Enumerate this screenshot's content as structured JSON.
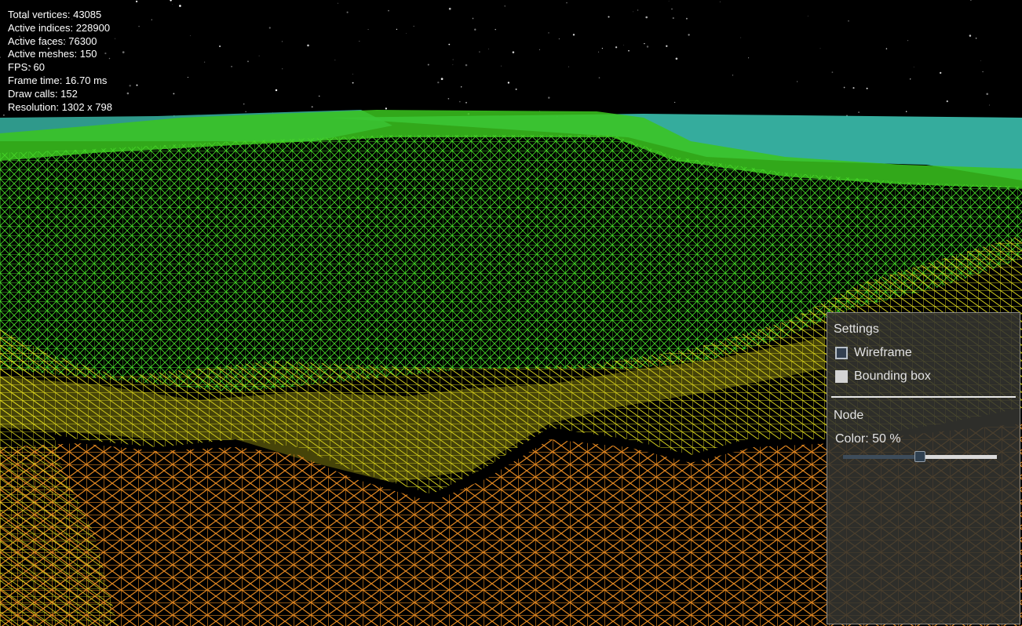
{
  "stats": {
    "total_vertices": "Total vertices: 43085",
    "active_indices": "Active indices: 228900",
    "active_faces": "Active faces: 76300",
    "active_meshes": "Active meshes: 150",
    "fps": "FPS: 60",
    "frame_time": "Frame time: 16.70 ms",
    "draw_calls": "Draw calls: 152",
    "resolution": "Resolution: 1302 x 798"
  },
  "settings": {
    "title": "Settings",
    "wireframe": {
      "label": "Wireframe",
      "checked": false
    },
    "bounding_box": {
      "label": "Bounding box",
      "checked": false
    }
  },
  "node": {
    "title": "Node",
    "color_label": "Color: 50 %",
    "color_value": 0.5
  },
  "colors": {
    "background": "#000000",
    "terrain_green": "#3fcf22",
    "terrain_yellow": "#d8d21c",
    "terrain_orange": "#d47a1c",
    "water_cyan": "#3bbfae",
    "panel_bg": "#343430"
  }
}
